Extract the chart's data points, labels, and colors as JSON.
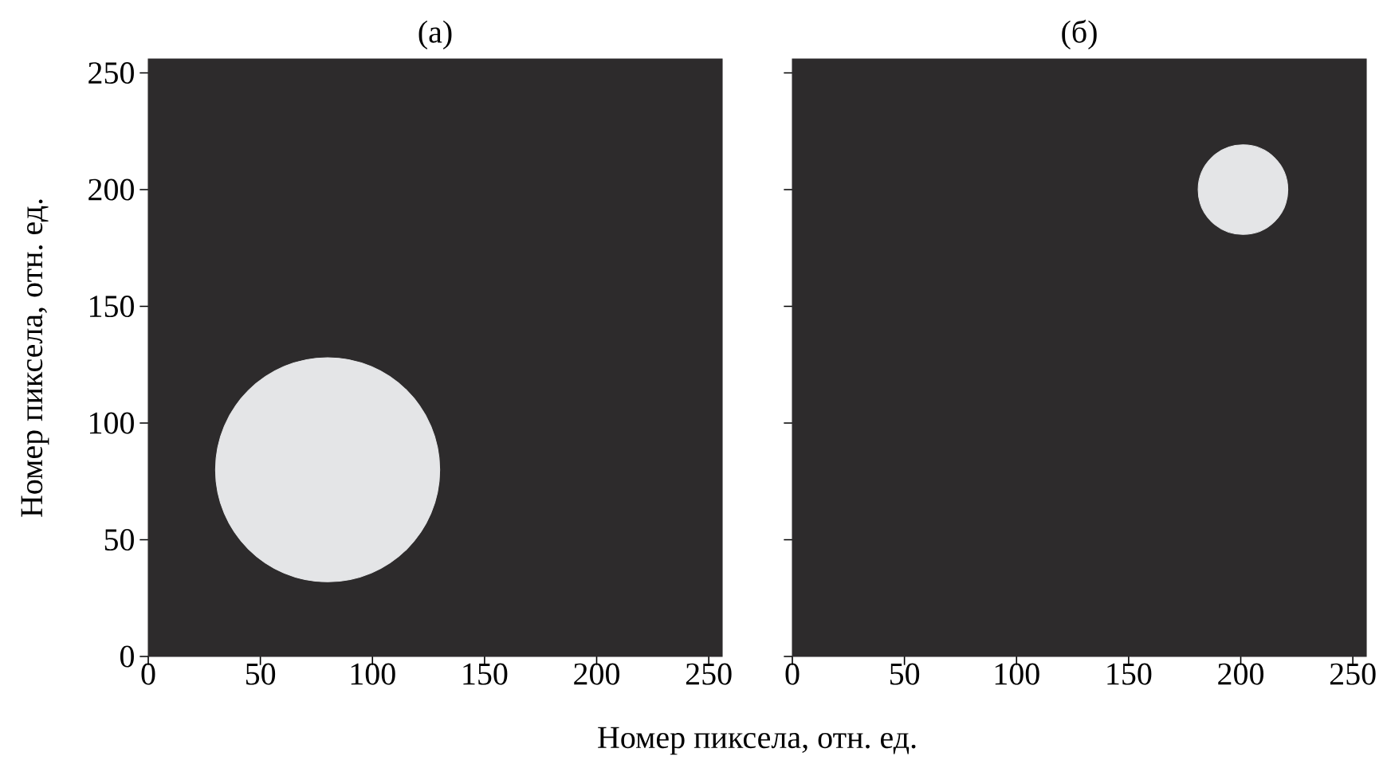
{
  "chart_data": [
    {
      "type": "bubble",
      "title": "(а)",
      "xlabel": "Номер пиксела, отн. ед.",
      "ylabel": "Номер пиксела, отн. ед.",
      "x": [
        80
      ],
      "values": [
        80
      ],
      "sizes": [
        1
      ],
      "color": "#e4e5e7",
      "xlim": [
        0,
        256
      ],
      "ylim": [
        0,
        256
      ],
      "xticks": [
        0,
        50,
        100,
        150,
        200,
        250
      ],
      "yticks": [
        0,
        50,
        100,
        150,
        200,
        250
      ]
    },
    {
      "type": "bubble",
      "title": "(б)",
      "x": [
        201
      ],
      "values": [
        200
      ],
      "sizes": [
        1
      ],
      "color": "#e4e5e7",
      "xlim": [
        0,
        256
      ],
      "ylim": [
        0,
        256
      ],
      "xticks": [
        0,
        50,
        100,
        150,
        200,
        250
      ],
      "yticks": [
        0,
        50,
        100,
        150,
        200,
        250
      ],
      "tick_labels": "x"
    }
  ]
}
